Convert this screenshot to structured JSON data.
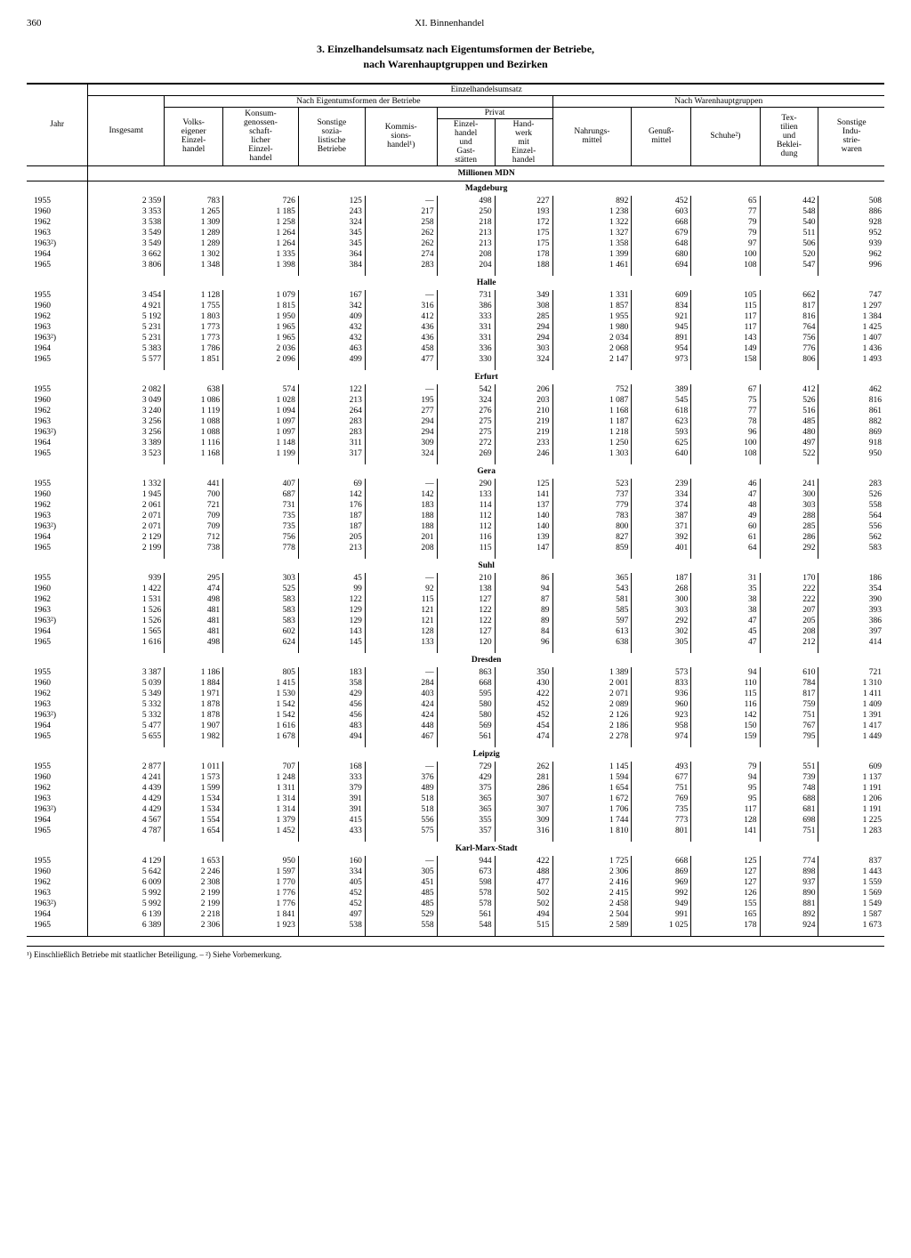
{
  "page_number": "360",
  "chapter": "XI. Binnenhandel",
  "title_line1": "3. Einzelhandelsumsatz nach Eigentumsformen der Betriebe,",
  "title_line2": "nach Warenhauptgruppen und Bezirken",
  "headers": {
    "jahr": "Jahr",
    "insgesamt": "Insgesamt",
    "umsatz": "Einzelhandelsumsatz",
    "eigentum": "Nach Eigentumsformen der Betriebe",
    "warengruppen": "Nach Warenhauptgruppen",
    "volkseigen": "Volks-\neigener\nEinzel-\nhandel",
    "konsum": "Konsum-\ngenossen-\nschaft-\nlicher\nEinzel-\nhandel",
    "sonstige_soz": "Sonstige\nsozia-\nlistische\nBetriebe",
    "kommission": "Kommis-\nsions-\nhandel¹)",
    "privat": "Privat",
    "einzelhandel_gast": "Einzel-\nhandel\nund\nGast-\nstätten",
    "handwerk": "Hand-\nwerk\nmit\nEinzel-\nhandel",
    "nahrung": "Nahrungs-\nmittel",
    "genuss": "Genuß-\nmittel",
    "schuhe": "Schuhe²)",
    "textil": "Tex-\ntilien\nund\nBeklei-\ndung",
    "sonstige_ind": "Sonstige\nIndu-\nstrie-\nwaren"
  },
  "unit": "Millionen MDN",
  "regions": [
    {
      "name": "Magdeburg",
      "rows": [
        [
          "1955",
          "2 359",
          "783",
          "726",
          "125",
          "—",
          "498",
          "227",
          "892",
          "452",
          "65",
          "442",
          "508"
        ],
        [
          "1960",
          "3 353",
          "1 265",
          "1 185",
          "243",
          "217",
          "250",
          "193",
          "1 238",
          "603",
          "77",
          "548",
          "886"
        ],
        [
          "1962",
          "3 538",
          "1 309",
          "1 258",
          "324",
          "258",
          "218",
          "172",
          "1 322",
          "668",
          "79",
          "540",
          "928"
        ],
        [
          "1963",
          "3 549",
          "1 289",
          "1 264",
          "345",
          "262",
          "213",
          "175",
          "1 327",
          "679",
          "79",
          "511",
          "952"
        ],
        [
          "1963²)",
          "3 549",
          "1 289",
          "1 264",
          "345",
          "262",
          "213",
          "175",
          "1 358",
          "648",
          "97",
          "506",
          "939"
        ],
        [
          "1964",
          "3 662",
          "1 302",
          "1 335",
          "364",
          "274",
          "208",
          "178",
          "1 399",
          "680",
          "100",
          "520",
          "962"
        ],
        [
          "1965",
          "3 806",
          "1 348",
          "1 398",
          "384",
          "283",
          "204",
          "188",
          "1 461",
          "694",
          "108",
          "547",
          "996"
        ]
      ]
    },
    {
      "name": "Halle",
      "rows": [
        [
          "1955",
          "3 454",
          "1 128",
          "1 079",
          "167",
          "—",
          "731",
          "349",
          "1 331",
          "609",
          "105",
          "662",
          "747"
        ],
        [
          "1960",
          "4 921",
          "1 755",
          "1 815",
          "342",
          "316",
          "386",
          "308",
          "1 857",
          "834",
          "115",
          "817",
          "1 297"
        ],
        [
          "1962",
          "5 192",
          "1 803",
          "1 950",
          "409",
          "412",
          "333",
          "285",
          "1 955",
          "921",
          "117",
          "816",
          "1 384"
        ],
        [
          "1963",
          "5 231",
          "1 773",
          "1 965",
          "432",
          "436",
          "331",
          "294",
          "1 980",
          "945",
          "117",
          "764",
          "1 425"
        ],
        [
          "1963²)",
          "5 231",
          "1 773",
          "1 965",
          "432",
          "436",
          "331",
          "294",
          "2 034",
          "891",
          "143",
          "756",
          "1 407"
        ],
        [
          "1964",
          "5 383",
          "1 786",
          "2 036",
          "463",
          "458",
          "336",
          "303",
          "2 068",
          "954",
          "149",
          "776",
          "1 436"
        ],
        [
          "1965",
          "5 577",
          "1 851",
          "2 096",
          "499",
          "477",
          "330",
          "324",
          "2 147",
          "973",
          "158",
          "806",
          "1 493"
        ]
      ]
    },
    {
      "name": "Erfurt",
      "rows": [
        [
          "1955",
          "2 082",
          "638",
          "574",
          "122",
          "—",
          "542",
          "206",
          "752",
          "389",
          "67",
          "412",
          "462"
        ],
        [
          "1960",
          "3 049",
          "1 086",
          "1 028",
          "213",
          "195",
          "324",
          "203",
          "1 087",
          "545",
          "75",
          "526",
          "816"
        ],
        [
          "1962",
          "3 240",
          "1 119",
          "1 094",
          "264",
          "277",
          "276",
          "210",
          "1 168",
          "618",
          "77",
          "516",
          "861"
        ],
        [
          "1963",
          "3 256",
          "1 088",
          "1 097",
          "283",
          "294",
          "275",
          "219",
          "1 187",
          "623",
          "78",
          "485",
          "882"
        ],
        [
          "1963²)",
          "3 256",
          "1 088",
          "1 097",
          "283",
          "294",
          "275",
          "219",
          "1 218",
          "593",
          "96",
          "480",
          "869"
        ],
        [
          "1964",
          "3 389",
          "1 116",
          "1 148",
          "311",
          "309",
          "272",
          "233",
          "1 250",
          "625",
          "100",
          "497",
          "918"
        ],
        [
          "1965",
          "3 523",
          "1 168",
          "1 199",
          "317",
          "324",
          "269",
          "246",
          "1 303",
          "640",
          "108",
          "522",
          "950"
        ]
      ]
    },
    {
      "name": "Gera",
      "rows": [
        [
          "1955",
          "1 332",
          "441",
          "407",
          "69",
          "—",
          "290",
          "125",
          "523",
          "239",
          "46",
          "241",
          "283"
        ],
        [
          "1960",
          "1 945",
          "700",
          "687",
          "142",
          "142",
          "133",
          "141",
          "737",
          "334",
          "47",
          "300",
          "526"
        ],
        [
          "1962",
          "2 061",
          "721",
          "731",
          "176",
          "183",
          "114",
          "137",
          "779",
          "374",
          "48",
          "303",
          "558"
        ],
        [
          "1963",
          "2 071",
          "709",
          "735",
          "187",
          "188",
          "112",
          "140",
          "783",
          "387",
          "49",
          "288",
          "564"
        ],
        [
          "1963²)",
          "2 071",
          "709",
          "735",
          "187",
          "188",
          "112",
          "140",
          "800",
          "371",
          "60",
          "285",
          "556"
        ],
        [
          "1964",
          "2 129",
          "712",
          "756",
          "205",
          "201",
          "116",
          "139",
          "827",
          "392",
          "61",
          "286",
          "562"
        ],
        [
          "1965",
          "2 199",
          "738",
          "778",
          "213",
          "208",
          "115",
          "147",
          "859",
          "401",
          "64",
          "292",
          "583"
        ]
      ]
    },
    {
      "name": "Suhl",
      "rows": [
        [
          "1955",
          "939",
          "295",
          "303",
          "45",
          "—",
          "210",
          "86",
          "365",
          "187",
          "31",
          "170",
          "186"
        ],
        [
          "1960",
          "1 422",
          "474",
          "525",
          "99",
          "92",
          "138",
          "94",
          "543",
          "268",
          "35",
          "222",
          "354"
        ],
        [
          "1962",
          "1 531",
          "498",
          "583",
          "122",
          "115",
          "127",
          "87",
          "581",
          "300",
          "38",
          "222",
          "390"
        ],
        [
          "1963",
          "1 526",
          "481",
          "583",
          "129",
          "121",
          "122",
          "89",
          "585",
          "303",
          "38",
          "207",
          "393"
        ],
        [
          "1963²)",
          "1 526",
          "481",
          "583",
          "129",
          "121",
          "122",
          "89",
          "597",
          "292",
          "47",
          "205",
          "386"
        ],
        [
          "1964",
          "1 565",
          "481",
          "602",
          "143",
          "128",
          "127",
          "84",
          "613",
          "302",
          "45",
          "208",
          "397"
        ],
        [
          "1965",
          "1 616",
          "498",
          "624",
          "145",
          "133",
          "120",
          "96",
          "638",
          "305",
          "47",
          "212",
          "414"
        ]
      ]
    },
    {
      "name": "Dresden",
      "rows": [
        [
          "1955",
          "3 387",
          "1 186",
          "805",
          "183",
          "—",
          "863",
          "350",
          "1 389",
          "573",
          "94",
          "610",
          "721"
        ],
        [
          "1960",
          "5 039",
          "1 884",
          "1 415",
          "358",
          "284",
          "668",
          "430",
          "2 001",
          "833",
          "110",
          "784",
          "1 310"
        ],
        [
          "1962",
          "5 349",
          "1 971",
          "1 530",
          "429",
          "403",
          "595",
          "422",
          "2 071",
          "936",
          "115",
          "817",
          "1 411"
        ],
        [
          "1963",
          "5 332",
          "1 878",
          "1 542",
          "456",
          "424",
          "580",
          "452",
          "2 089",
          "960",
          "116",
          "759",
          "1 409"
        ],
        [
          "1963²)",
          "5 332",
          "1 878",
          "1 542",
          "456",
          "424",
          "580",
          "452",
          "2 126",
          "923",
          "142",
          "751",
          "1 391"
        ],
        [
          "1964",
          "5 477",
          "1 907",
          "1 616",
          "483",
          "448",
          "569",
          "454",
          "2 186",
          "958",
          "150",
          "767",
          "1 417"
        ],
        [
          "1965",
          "5 655",
          "1 982",
          "1 678",
          "494",
          "467",
          "561",
          "474",
          "2 278",
          "974",
          "159",
          "795",
          "1 449"
        ]
      ]
    },
    {
      "name": "Leipzig",
      "rows": [
        [
          "1955",
          "2 877",
          "1 011",
          "707",
          "168",
          "—",
          "729",
          "262",
          "1 145",
          "493",
          "79",
          "551",
          "609"
        ],
        [
          "1960",
          "4 241",
          "1 573",
          "1 248",
          "333",
          "376",
          "429",
          "281",
          "1 594",
          "677",
          "94",
          "739",
          "1 137"
        ],
        [
          "1962",
          "4 439",
          "1 599",
          "1 311",
          "379",
          "489",
          "375",
          "286",
          "1 654",
          "751",
          "95",
          "748",
          "1 191"
        ],
        [
          "1963",
          "4 429",
          "1 534",
          "1 314",
          "391",
          "518",
          "365",
          "307",
          "1 672",
          "769",
          "95",
          "688",
          "1 206"
        ],
        [
          "1963²)",
          "4 429",
          "1 534",
          "1 314",
          "391",
          "518",
          "365",
          "307",
          "1 706",
          "735",
          "117",
          "681",
          "1 191"
        ],
        [
          "1964",
          "4 567",
          "1 554",
          "1 379",
          "415",
          "556",
          "355",
          "309",
          "1 744",
          "773",
          "128",
          "698",
          "1 225"
        ],
        [
          "1965",
          "4 787",
          "1 654",
          "1 452",
          "433",
          "575",
          "357",
          "316",
          "1 810",
          "801",
          "141",
          "751",
          "1 283"
        ]
      ]
    },
    {
      "name": "Karl-Marx-Stadt",
      "rows": [
        [
          "1955",
          "4 129",
          "1 653",
          "950",
          "160",
          "—",
          "944",
          "422",
          "1 725",
          "668",
          "125",
          "774",
          "837"
        ],
        [
          "1960",
          "5 642",
          "2 246",
          "1 597",
          "334",
          "305",
          "673",
          "488",
          "2 306",
          "869",
          "127",
          "898",
          "1 443"
        ],
        [
          "1962",
          "6 009",
          "2 308",
          "1 770",
          "405",
          "451",
          "598",
          "477",
          "2 416",
          "969",
          "127",
          "937",
          "1 559"
        ],
        [
          "1963",
          "5 992",
          "2 199",
          "1 776",
          "452",
          "485",
          "578",
          "502",
          "2 415",
          "992",
          "126",
          "890",
          "1 569"
        ],
        [
          "1963²)",
          "5 992",
          "2 199",
          "1 776",
          "452",
          "485",
          "578",
          "502",
          "2 458",
          "949",
          "155",
          "881",
          "1 549"
        ],
        [
          "1964",
          "6 139",
          "2 218",
          "1 841",
          "497",
          "529",
          "561",
          "494",
          "2 504",
          "991",
          "165",
          "892",
          "1 587"
        ],
        [
          "1965",
          "6 389",
          "2 306",
          "1 923",
          "538",
          "558",
          "548",
          "515",
          "2 589",
          "1 025",
          "178",
          "924",
          "1 673"
        ]
      ]
    }
  ],
  "footnote": "¹) Einschließlich Betriebe mit staatlicher Beteiligung. – ²) Siehe Vorbemerkung."
}
